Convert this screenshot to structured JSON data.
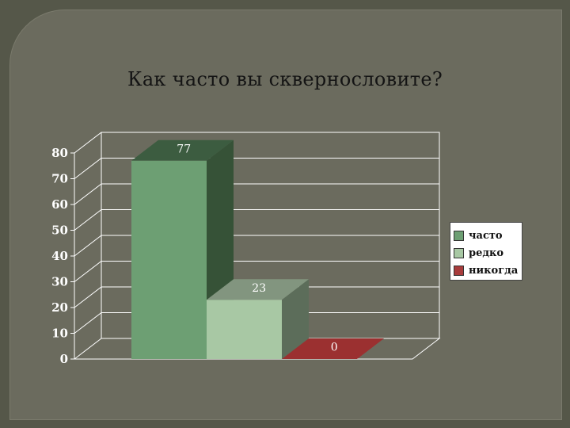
{
  "slide": {
    "title": "Как часто вы сквернословите?"
  },
  "chart_data": {
    "type": "bar",
    "categories": [
      "часто",
      "редко",
      "никогда"
    ],
    "values": [
      77,
      23,
      0
    ],
    "ylim": [
      0,
      80
    ],
    "yticks": [
      0,
      10,
      20,
      30,
      40,
      50,
      60,
      70,
      80
    ],
    "title": "",
    "xlabel": "",
    "ylabel": "",
    "legend_position": "right",
    "grid": true,
    "colors": {
      "front": [
        "#6d9f73",
        "#a8c8a4",
        "#a83c3c"
      ],
      "side": [
        "#365237",
        "#5c6d5a",
        "#6b2424"
      ],
      "top": [
        "#3c5c40",
        "#82957f",
        "#9b3030"
      ]
    },
    "legend": [
      {
        "label": "часто",
        "color": "#6d9f73"
      },
      {
        "label": "редко",
        "color": "#a8c8a4"
      },
      {
        "label": "никогда",
        "color": "#a83c3c"
      }
    ]
  }
}
